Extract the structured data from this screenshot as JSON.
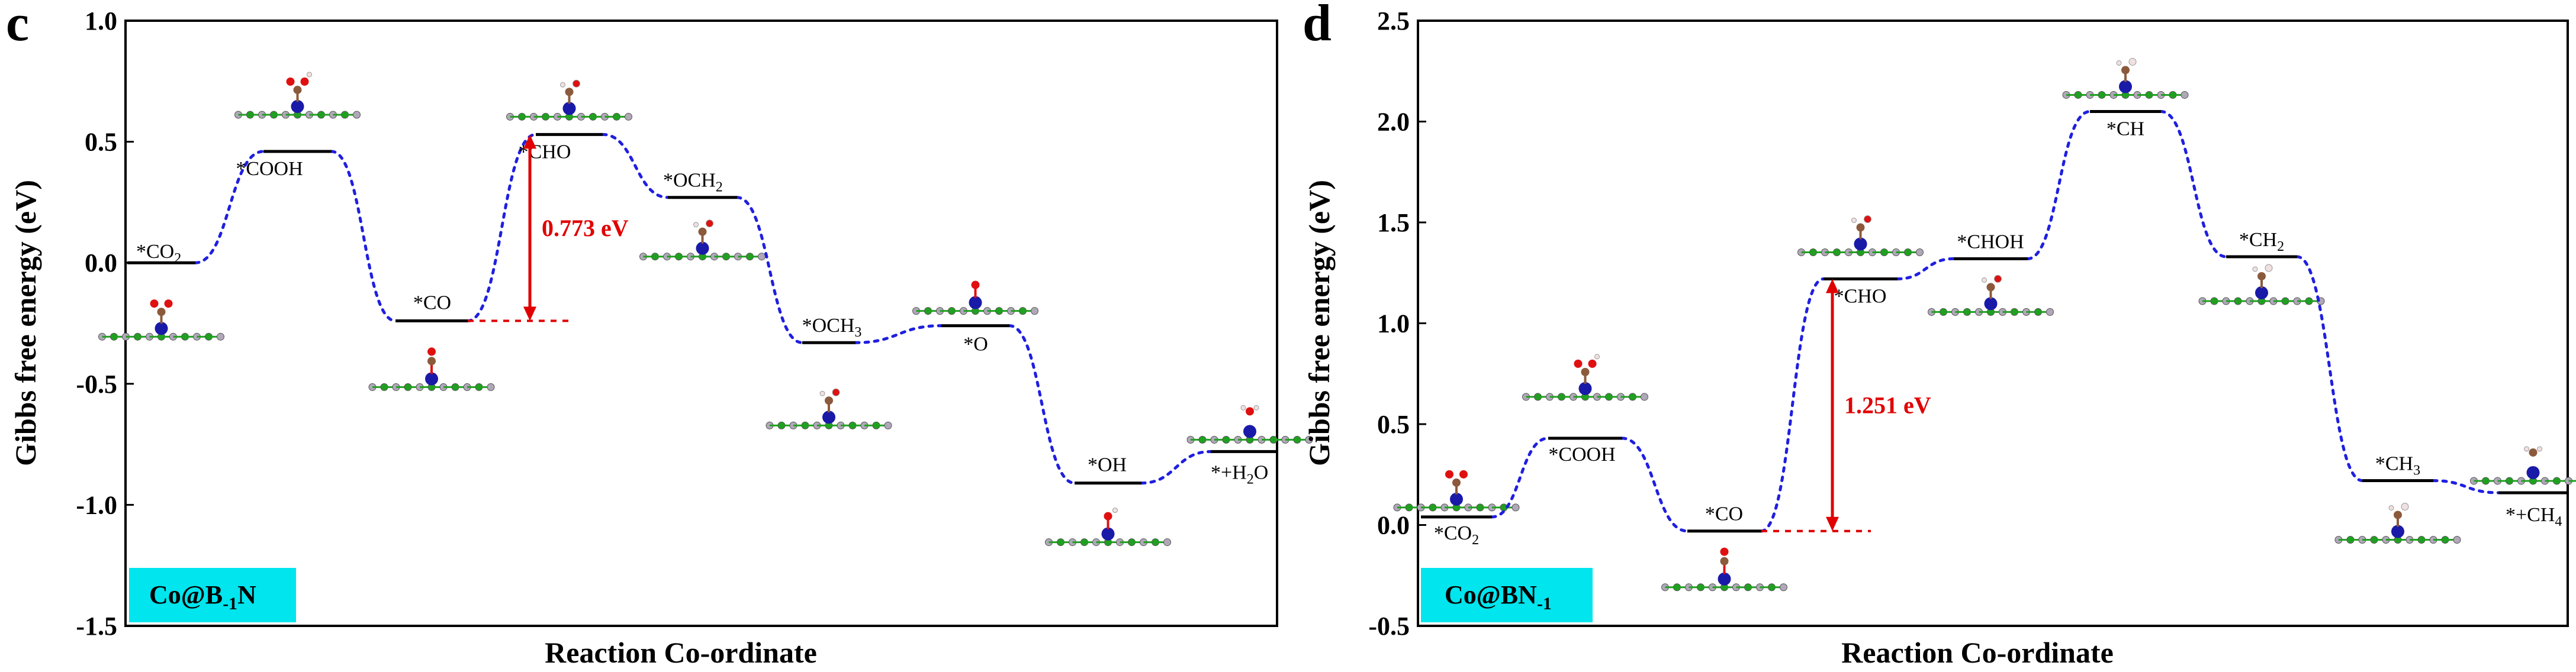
{
  "chart_data": [
    {
      "type": "line",
      "panel": "c",
      "title": "",
      "xlabel": "Reaction Co-ordinate",
      "ylabel": "Gibbs free energy (eV)",
      "ylim": [
        -1.5,
        1.0
      ],
      "yticks": [
        1.0,
        0.5,
        0.0,
        -0.5,
        -1.0,
        -1.5
      ],
      "ytick_labels": [
        "1.0",
        "0.5",
        "0.0",
        "-0.5",
        "-1.0",
        "-1.5"
      ],
      "catalyst_label": {
        "pre": "Co@B",
        "sub": "-1",
        "post": "N"
      },
      "states": [
        {
          "id": "CO2",
          "energy": 0.0,
          "label": {
            "pre": "*CO",
            "sub": "2",
            "post": ""
          }
        },
        {
          "id": "COOH",
          "energy": 0.46,
          "label": {
            "pre": "*COOH",
            "sub": "",
            "post": ""
          }
        },
        {
          "id": "CO",
          "energy": -0.24,
          "label": {
            "pre": "*CO",
            "sub": "",
            "post": ""
          }
        },
        {
          "id": "CHO",
          "energy": 0.53,
          "label": {
            "pre": "*CHO",
            "sub": "",
            "post": ""
          }
        },
        {
          "id": "OCH2",
          "energy": 0.27,
          "label": {
            "pre": "*OCH",
            "sub": "2",
            "post": ""
          }
        },
        {
          "id": "OCH3",
          "energy": -0.33,
          "label": {
            "pre": "*OCH",
            "sub": "3",
            "post": ""
          }
        },
        {
          "id": "O",
          "energy": -0.26,
          "label": {
            "pre": "*O",
            "sub": "",
            "post": ""
          }
        },
        {
          "id": "OH",
          "energy": -0.91,
          "label": {
            "pre": "*OH",
            "sub": "",
            "post": ""
          }
        },
        {
          "id": "H2O",
          "energy": -0.78,
          "label": {
            "pre": "*+H",
            "sub": "2",
            "post": "O"
          }
        }
      ],
      "barrier": {
        "from": "CO",
        "to": "CHO",
        "value": 0.773,
        "text": "0.773 eV"
      }
    },
    {
      "type": "line",
      "panel": "d",
      "title": "",
      "xlabel": "Reaction Co-ordinate",
      "ylabel": "Gibbs free energy (eV)",
      "ylim": [
        -0.5,
        2.5
      ],
      "yticks": [
        2.5,
        2.0,
        1.5,
        1.0,
        0.5,
        0.0,
        -0.5
      ],
      "ytick_labels": [
        "2.5",
        "2.0",
        "1.5",
        "1.0",
        "0.5",
        "0.0",
        "-0.5"
      ],
      "catalyst_label": {
        "pre": "Co@BN",
        "sub": "-1",
        "post": ""
      },
      "states": [
        {
          "id": "CO2",
          "energy": 0.04,
          "label": {
            "pre": "*CO",
            "sub": "2",
            "post": ""
          }
        },
        {
          "id": "COOH",
          "energy": 0.43,
          "label": {
            "pre": "*COOH",
            "sub": "",
            "post": ""
          }
        },
        {
          "id": "CO",
          "energy": -0.03,
          "label": {
            "pre": "*CO",
            "sub": "",
            "post": ""
          }
        },
        {
          "id": "CHO",
          "energy": 1.22,
          "label": {
            "pre": "*CHO",
            "sub": "",
            "post": ""
          }
        },
        {
          "id": "CHOH",
          "energy": 1.32,
          "label": {
            "pre": "*CHOH",
            "sub": "",
            "post": ""
          }
        },
        {
          "id": "CH",
          "energy": 2.05,
          "label": {
            "pre": "*CH",
            "sub": "",
            "post": ""
          }
        },
        {
          "id": "CH2",
          "energy": 1.33,
          "label": {
            "pre": "*CH",
            "sub": "2",
            "post": ""
          }
        },
        {
          "id": "CH3",
          "energy": 0.22,
          "label": {
            "pre": "*CH",
            "sub": "3",
            "post": ""
          }
        },
        {
          "id": "CH4",
          "energy": 0.16,
          "label": {
            "pre": "*+CH",
            "sub": "4",
            "post": ""
          }
        }
      ],
      "barrier": {
        "from": "CO",
        "to": "CHO",
        "value": 1.251,
        "text": "1.251 eV"
      }
    }
  ],
  "colors": {
    "connector": "#1f1fe0",
    "barrier": "#e00000",
    "label_box": "#00e5ee",
    "cobalt": "#1a1aa8",
    "boron": "#b0a8b8",
    "nitrogen": "#20a020",
    "carbon": "#8b5a3c",
    "oxygen": "#e01010",
    "hydrogen": "#f0e0e0"
  }
}
